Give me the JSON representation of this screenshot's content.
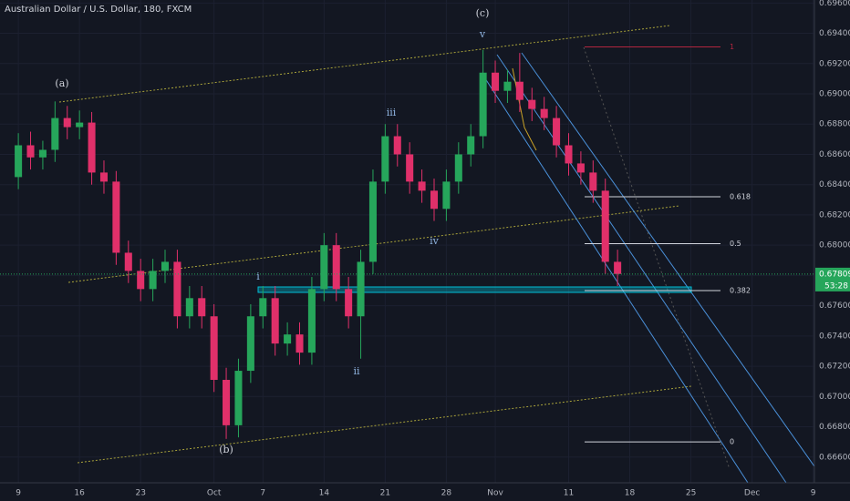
{
  "chart_data": {
    "type": "candlestick",
    "title": "Australian Dollar / U.S. Dollar, 180, FXCM",
    "up_color": "#26a65b",
    "down_color": "#e0306a",
    "xlim": [
      -1.5,
      65.1
    ],
    "ylim": [
      0.6643,
      0.6962
    ],
    "xticks": [
      {
        "value": 0,
        "label": "9"
      },
      {
        "value": 5,
        "label": "16"
      },
      {
        "value": 10,
        "label": "23"
      },
      {
        "value": 16,
        "label": "Oct"
      },
      {
        "value": 20,
        "label": "7"
      },
      {
        "value": 25,
        "label": "14"
      },
      {
        "value": 30,
        "label": "21"
      },
      {
        "value": 35,
        "label": "28"
      },
      {
        "value": 39,
        "label": "Nov"
      },
      {
        "value": 45,
        "label": "11"
      },
      {
        "value": 50,
        "label": "18"
      },
      {
        "value": 55,
        "label": "25"
      },
      {
        "value": 60,
        "label": "Dec"
      },
      {
        "value": 65,
        "label": "9"
      }
    ],
    "yticks": [
      {
        "value": 0.696,
        "label": "0.69600"
      },
      {
        "value": 0.694,
        "label": "0.69400"
      },
      {
        "value": 0.692,
        "label": "0.69200"
      },
      {
        "value": 0.69,
        "label": "0.69000"
      },
      {
        "value": 0.688,
        "label": "0.68800"
      },
      {
        "value": 0.686,
        "label": "0.68600"
      },
      {
        "value": 0.684,
        "label": "0.68400"
      },
      {
        "value": 0.682,
        "label": "0.68200"
      },
      {
        "value": 0.68,
        "label": "0.68000"
      },
      {
        "value": 0.678,
        "label": "0.67800"
      },
      {
        "value": 0.676,
        "label": "0.67600"
      },
      {
        "value": 0.674,
        "label": "0.67400"
      },
      {
        "value": 0.672,
        "label": "0.67200"
      },
      {
        "value": 0.67,
        "label": "0.67000"
      },
      {
        "value": 0.668,
        "label": "0.66800"
      },
      {
        "value": 0.666,
        "label": "0.66600"
      }
    ],
    "x": [
      0,
      1,
      2,
      3,
      4,
      5,
      6,
      7,
      8,
      9,
      10,
      11,
      12,
      13,
      14,
      15,
      16,
      17,
      18,
      19,
      20,
      21,
      22,
      23,
      24,
      25,
      26,
      27,
      28,
      29,
      30,
      31,
      32,
      33,
      34,
      35,
      36,
      37,
      38,
      39,
      40,
      41,
      42,
      43,
      44,
      45,
      46,
      47,
      48,
      49
    ],
    "open": [
      0.6845,
      0.6866,
      0.6858,
      0.6863,
      0.6884,
      0.6878,
      0.6881,
      0.6848,
      0.6842,
      0.6795,
      0.6783,
      0.6771,
      0.6783,
      0.6789,
      0.6753,
      0.6765,
      0.6753,
      0.6711,
      0.6681,
      0.6717,
      0.6753,
      0.6765,
      0.6735,
      0.6741,
      0.6729,
      0.6771,
      0.68,
      0.6771,
      0.6753,
      0.6789,
      0.6842,
      0.6872,
      0.686,
      0.6842,
      0.6836,
      0.6824,
      0.6842,
      0.686,
      0.6872,
      0.6914,
      0.6902,
      0.6908,
      0.6896,
      0.689,
      0.6884,
      0.6866,
      0.6854,
      0.6848,
      0.6836,
      0.6789
    ],
    "high": [
      0.6874,
      0.6875,
      0.6869,
      0.6895,
      0.6892,
      0.6889,
      0.6888,
      0.6856,
      0.6849,
      0.6803,
      0.6791,
      0.6791,
      0.6797,
      0.6797,
      0.6773,
      0.6773,
      0.6761,
      0.6719,
      0.6725,
      0.6761,
      0.6773,
      0.6773,
      0.6749,
      0.6749,
      0.6779,
      0.6808,
      0.6808,
      0.6779,
      0.6797,
      0.685,
      0.688,
      0.688,
      0.6868,
      0.685,
      0.6844,
      0.685,
      0.6868,
      0.688,
      0.6929,
      0.6922,
      0.6916,
      0.6927,
      0.6904,
      0.6898,
      0.6892,
      0.6874,
      0.6862,
      0.6856,
      0.6844,
      0.6797
    ],
    "low": [
      0.6837,
      0.685,
      0.685,
      0.6855,
      0.687,
      0.687,
      0.684,
      0.6834,
      0.6787,
      0.6775,
      0.6763,
      0.6763,
      0.6775,
      0.6745,
      0.6745,
      0.6745,
      0.6703,
      0.6672,
      0.6673,
      0.6709,
      0.6745,
      0.6727,
      0.6727,
      0.6721,
      0.6721,
      0.6763,
      0.6763,
      0.6745,
      0.6725,
      0.6781,
      0.6834,
      0.6852,
      0.6834,
      0.6828,
      0.6816,
      0.6816,
      0.6834,
      0.6852,
      0.6864,
      0.6894,
      0.6894,
      0.6888,
      0.6882,
      0.6876,
      0.6858,
      0.6846,
      0.684,
      0.6828,
      0.6781,
      0.6773
    ],
    "close": [
      0.6866,
      0.6858,
      0.6863,
      0.6884,
      0.6878,
      0.6881,
      0.6848,
      0.6842,
      0.6795,
      0.6783,
      0.6771,
      0.6783,
      0.6789,
      0.6753,
      0.6765,
      0.6753,
      0.6711,
      0.6681,
      0.6717,
      0.6753,
      0.6765,
      0.6735,
      0.6741,
      0.6729,
      0.6771,
      0.68,
      0.6771,
      0.6753,
      0.6789,
      0.6842,
      0.6872,
      0.686,
      0.6842,
      0.6836,
      0.6824,
      0.6842,
      0.686,
      0.6872,
      0.6914,
      0.6902,
      0.6908,
      0.6896,
      0.689,
      0.6884,
      0.6866,
      0.6854,
      0.6848,
      0.6836,
      0.6789,
      0.6781
    ],
    "last_price": 0.67809,
    "countdown": "53:28",
    "fib": [
      {
        "ratio": 1,
        "price": 0.6931,
        "color": "#b2263f"
      },
      {
        "ratio": 0.618,
        "price": 0.6832,
        "color": "#d1d4dc"
      },
      {
        "ratio": 0.5,
        "price": 0.6801,
        "color": "#d1d4dc"
      },
      {
        "ratio": 0.382,
        "price": 0.677,
        "color": "#d1d4dc"
      },
      {
        "ratio": 0,
        "price": 0.667,
        "color": "#d1d4dc"
      }
    ],
    "wave_labels": [
      "(a)",
      "(b)",
      "(c)",
      "i",
      "ii",
      "iii",
      "iv",
      "v"
    ]
  }
}
